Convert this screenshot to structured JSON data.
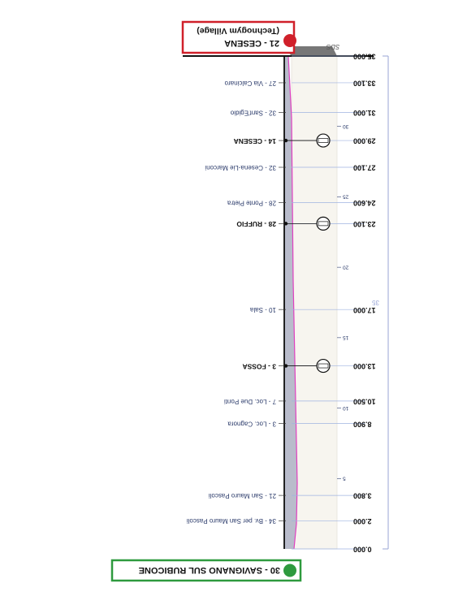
{
  "start": "30 - SAVIGNANO SUL RUBICONE",
  "finish": {
    "name": "21 - CESENA",
    "sub": "(Technogym Village)"
  },
  "sds": "SDS",
  "total_km": 35,
  "km_marks": [
    5,
    10,
    15,
    20,
    25,
    30
  ],
  "points": [
    {
      "km": {
        "value": 0,
        "label": "0.000"
      }
    },
    {
      "km": {
        "value": 2,
        "label": "2.000"
      },
      "name": "34 - Bv. per San Mauro Pascoli",
      "sprint": false
    },
    {
      "km": {
        "value": 3.8,
        "label": "3.800"
      },
      "name": "21 - San Mauro Pascoli",
      "sprint": false
    },
    {
      "km": {
        "value": 8.9,
        "label": "8.900"
      },
      "name": "3 - Loc. Cagnora",
      "sprint": false
    },
    {
      "km": {
        "value": 10.5,
        "label": "10.500"
      },
      "name": "7 - Loc. Due Ponti",
      "sprint": false
    },
    {
      "km": {
        "value": 13,
        "label": "13.000"
      },
      "name": "3 - FOSSA",
      "sprint": true
    },
    {
      "km": {
        "value": 17,
        "label": "17.000"
      },
      "name": "10 - Sala",
      "sprint": false
    },
    {
      "km": {
        "value": 23.1,
        "label": "23.100"
      },
      "name": "28 - RUFFIO",
      "sprint": true
    },
    {
      "km": {
        "value": 24.6,
        "label": "24.600"
      },
      "name": "28 - Ponte Pietra",
      "sprint": false
    },
    {
      "km": {
        "value": 27.1,
        "label": "27.100"
      },
      "name": "32 - Cesena-Lie Marconi",
      "sprint": false
    },
    {
      "km": {
        "value": 29,
        "label": "29.000"
      },
      "name": "14 - CESENA",
      "sprint": true
    },
    {
      "km": {
        "value": 31,
        "label": "31.000"
      },
      "name": "32 - Sant'Egidio",
      "sprint": false
    },
    {
      "km": {
        "value": 33.1,
        "label": "33.100"
      },
      "name": "27 - Via Calcinaro",
      "sprint": false
    },
    {
      "km": {
        "value": 35,
        "label": "35.000"
      }
    }
  ]
}
